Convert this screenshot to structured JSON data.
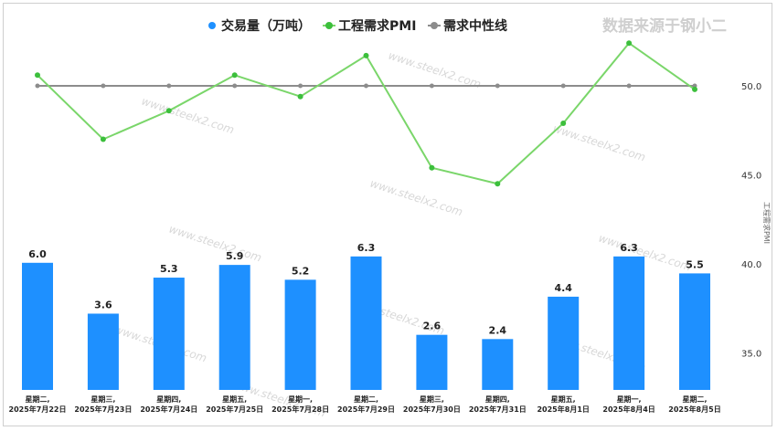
{
  "chart_data": {
    "type": "bar",
    "legend_position": "top",
    "source_note": "数据来源于钢小二",
    "watermark": "www.steelx2.com",
    "y2label": "工程需求PMI",
    "y2lim": [
      32.5,
      52.5
    ],
    "y2ticks": [
      35.0,
      40.0,
      45.0,
      50.0
    ],
    "ylim": [
      0,
      8.5
    ],
    "categories": [
      [
        "星期二,",
        "2025年7月22日"
      ],
      [
        "星期三,",
        "2025年7月23日"
      ],
      [
        "星期四,",
        "2025年7月24日"
      ],
      [
        "星期五,",
        "2025年7月25日"
      ],
      [
        "星期一,",
        "2025年7月28日"
      ],
      [
        "星期二,",
        "2025年7月29日"
      ],
      [
        "星期三,",
        "2025年7月30日"
      ],
      [
        "星期四,",
        "2025年7月31日"
      ],
      [
        "星期五,",
        "2025年8月1日"
      ],
      [
        "星期一,",
        "2025年8月4日"
      ],
      [
        "星期二,",
        "2025年8月5日"
      ]
    ],
    "series": [
      {
        "name": "交易量（万吨）",
        "type": "bar",
        "color": "#1e90ff",
        "values": [
          6.0,
          3.6,
          5.3,
          5.9,
          5.2,
          6.3,
          2.6,
          2.4,
          4.4,
          6.3,
          5.5
        ],
        "labels": [
          "6.0",
          "3.6",
          "5.3",
          "5.9",
          "5.2",
          "6.3",
          "2.6",
          "2.4",
          "4.4",
          "6.3",
          "5.5"
        ]
      },
      {
        "name": "工程需求PMI",
        "type": "line",
        "color": "#7ad66a",
        "marker_color": "#3cbf3c",
        "values": [
          50.6,
          47.0,
          48.6,
          50.6,
          49.4,
          51.7,
          45.4,
          44.5,
          47.9,
          52.4,
          49.8
        ]
      },
      {
        "name": "需求中性线",
        "type": "line",
        "color": "#8c8c8c",
        "values": [
          50,
          50,
          50,
          50,
          50,
          50,
          50,
          50,
          50,
          50,
          50
        ]
      }
    ]
  }
}
